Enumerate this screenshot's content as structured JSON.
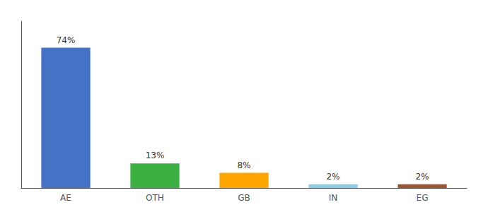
{
  "chart_data": {
    "type": "bar",
    "categories": [
      "AE",
      "OTH",
      "GB",
      "IN",
      "EG"
    ],
    "values": [
      74,
      13,
      8,
      2,
      2
    ],
    "value_labels": [
      "74%",
      "13%",
      "8%",
      "2%",
      "2%"
    ],
    "colors": [
      "#4472c4",
      "#3cb043",
      "#ffa500",
      "#87ceeb",
      "#a0522d"
    ],
    "ylim": [
      0,
      88
    ],
    "tick_labels": "x",
    "grid": false,
    "data_labels": true
  }
}
